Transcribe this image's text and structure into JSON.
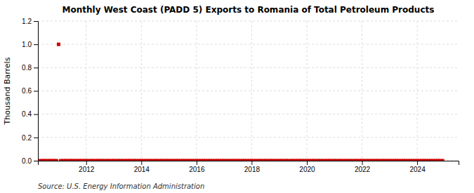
{
  "chart_data": {
    "type": "scatter",
    "title": "Monthly West Coast (PADD 5) Exports to Romania of Total Petroleum Products",
    "ylabel": "Thousand Barrels",
    "annotation": "Source: U.S. Energy Information Administration",
    "color": "#cc0000",
    "marker": "square",
    "grid": true,
    "xlim": [
      2010.25,
      2025.5
    ],
    "xticks": [
      2012,
      2014,
      2016,
      2018,
      2020,
      2022,
      2024
    ],
    "ylim": [
      0,
      1.2
    ],
    "yticks": [
      {
        "value": 0.0,
        "label": "0.0"
      },
      0.2,
      0.4,
      0.6,
      0.8,
      {
        "value": 1.0,
        "label": "1.0"
      },
      1.2
    ],
    "x": [
      2010.33,
      2010.42,
      2010.5,
      2010.58,
      2010.67,
      2010.75,
      2010.83,
      2010.92,
      2011.0,
      2011.08,
      2011.17,
      2011.25,
      2011.33,
      2011.42,
      2011.5,
      2011.58,
      2011.67,
      2011.75,
      2011.83,
      2011.92,
      2012.0,
      2012.08,
      2012.17,
      2012.25,
      2012.33,
      2012.42,
      2012.5,
      2012.58,
      2012.67,
      2012.75,
      2012.83,
      2012.92,
      2013.0,
      2013.08,
      2013.17,
      2013.25,
      2013.33,
      2013.42,
      2013.5,
      2013.58,
      2013.67,
      2013.75,
      2013.83,
      2013.92,
      2014.0,
      2014.08,
      2014.17,
      2014.25,
      2014.33,
      2014.42,
      2014.5,
      2014.58,
      2014.67,
      2014.75,
      2014.83,
      2014.92,
      2015.0,
      2015.08,
      2015.17,
      2015.25,
      2015.33,
      2015.42,
      2015.5,
      2015.58,
      2015.67,
      2015.75,
      2015.83,
      2015.92,
      2016.0,
      2016.08,
      2016.17,
      2016.25,
      2016.33,
      2016.42,
      2016.5,
      2016.58,
      2016.67,
      2016.75,
      2016.83,
      2016.92,
      2017.0,
      2017.08,
      2017.17,
      2017.25,
      2017.33,
      2017.42,
      2017.5,
      2017.58,
      2017.67,
      2017.75,
      2017.83,
      2017.92,
      2018.0,
      2018.08,
      2018.17,
      2018.25,
      2018.33,
      2018.42,
      2018.5,
      2018.58,
      2018.67,
      2018.75,
      2018.83,
      2018.92,
      2019.0,
      2019.08,
      2019.17,
      2019.25,
      2019.33,
      2019.42,
      2019.5,
      2019.58,
      2019.67,
      2019.75,
      2019.83,
      2019.92,
      2020.0,
      2020.08,
      2020.17,
      2020.25,
      2020.33,
      2020.42,
      2020.5,
      2020.58,
      2020.67,
      2020.75,
      2020.83,
      2020.92,
      2021.0,
      2021.08,
      2021.17,
      2021.25,
      2021.33,
      2021.42,
      2021.5,
      2021.58,
      2021.67,
      2021.75,
      2021.83,
      2021.92,
      2022.0,
      2022.08,
      2022.17,
      2022.25,
      2022.33,
      2022.42,
      2022.5,
      2022.58,
      2022.67,
      2022.75,
      2022.83,
      2022.92,
      2023.0,
      2023.08,
      2023.17,
      2023.25,
      2023.33,
      2023.42,
      2023.5,
      2023.58,
      2023.67,
      2023.75,
      2023.83,
      2023.92,
      2024.0,
      2024.08,
      2024.17,
      2024.25,
      2024.33,
      2024.42,
      2024.5,
      2024.58,
      2024.67,
      2024.75,
      2024.83,
      2024.92
    ],
    "values": [
      0,
      0,
      0,
      0,
      0,
      0,
      0,
      0,
      1.0,
      0,
      0,
      0,
      0,
      0,
      0,
      0,
      0,
      0,
      0,
      0,
      0,
      0,
      0,
      0,
      0,
      0,
      0,
      0,
      0,
      0,
      0,
      0,
      0,
      0,
      0,
      0,
      0,
      0,
      0,
      0,
      0,
      0,
      0,
      0,
      0,
      0,
      0,
      0,
      0,
      0,
      0,
      0,
      0,
      0,
      0,
      0,
      0,
      0,
      0,
      0,
      0,
      0,
      0,
      0,
      0,
      0,
      0,
      0,
      0,
      0,
      0,
      0,
      0,
      0,
      0,
      0,
      0,
      0,
      0,
      0,
      0,
      0,
      0,
      0,
      0,
      0,
      0,
      0,
      0,
      0,
      0,
      0,
      0,
      0,
      0,
      0,
      0,
      0,
      0,
      0,
      0,
      0,
      0,
      0,
      0,
      0,
      0,
      0,
      0,
      0,
      0,
      0,
      0,
      0,
      0,
      0,
      0,
      0,
      0,
      0,
      0,
      0,
      0,
      0,
      0,
      0,
      0,
      0,
      0,
      0,
      0,
      0,
      0,
      0,
      0,
      0,
      0,
      0,
      0,
      0,
      0,
      0,
      0,
      0,
      0,
      0,
      0,
      0,
      0,
      0,
      0,
      0,
      0,
      0,
      0,
      0,
      0,
      0,
      0,
      0,
      0,
      0,
      0,
      0,
      0,
      0,
      0,
      0,
      0,
      0,
      0,
      0,
      0,
      0,
      0,
      0
    ]
  }
}
